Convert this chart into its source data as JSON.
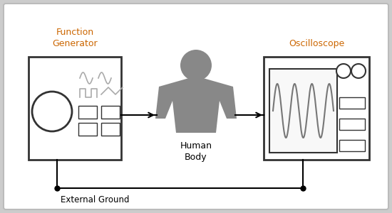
{
  "bg_color": "#cccccc",
  "panel_bg": "#ffffff",
  "human_color": "#888888",
  "text_color": "#000000",
  "label_color": "#cc6600",
  "fg_label": "Function\nGenerator",
  "osc_label": "Oscilloscope",
  "body_label": "Human\nBody",
  "ground_label": "External Ground",
  "wave_color": "#aaaaaa",
  "osc_wave_color": "#888888",
  "btn_color": "#ffffff",
  "screen_bg": "#f8f8f8"
}
